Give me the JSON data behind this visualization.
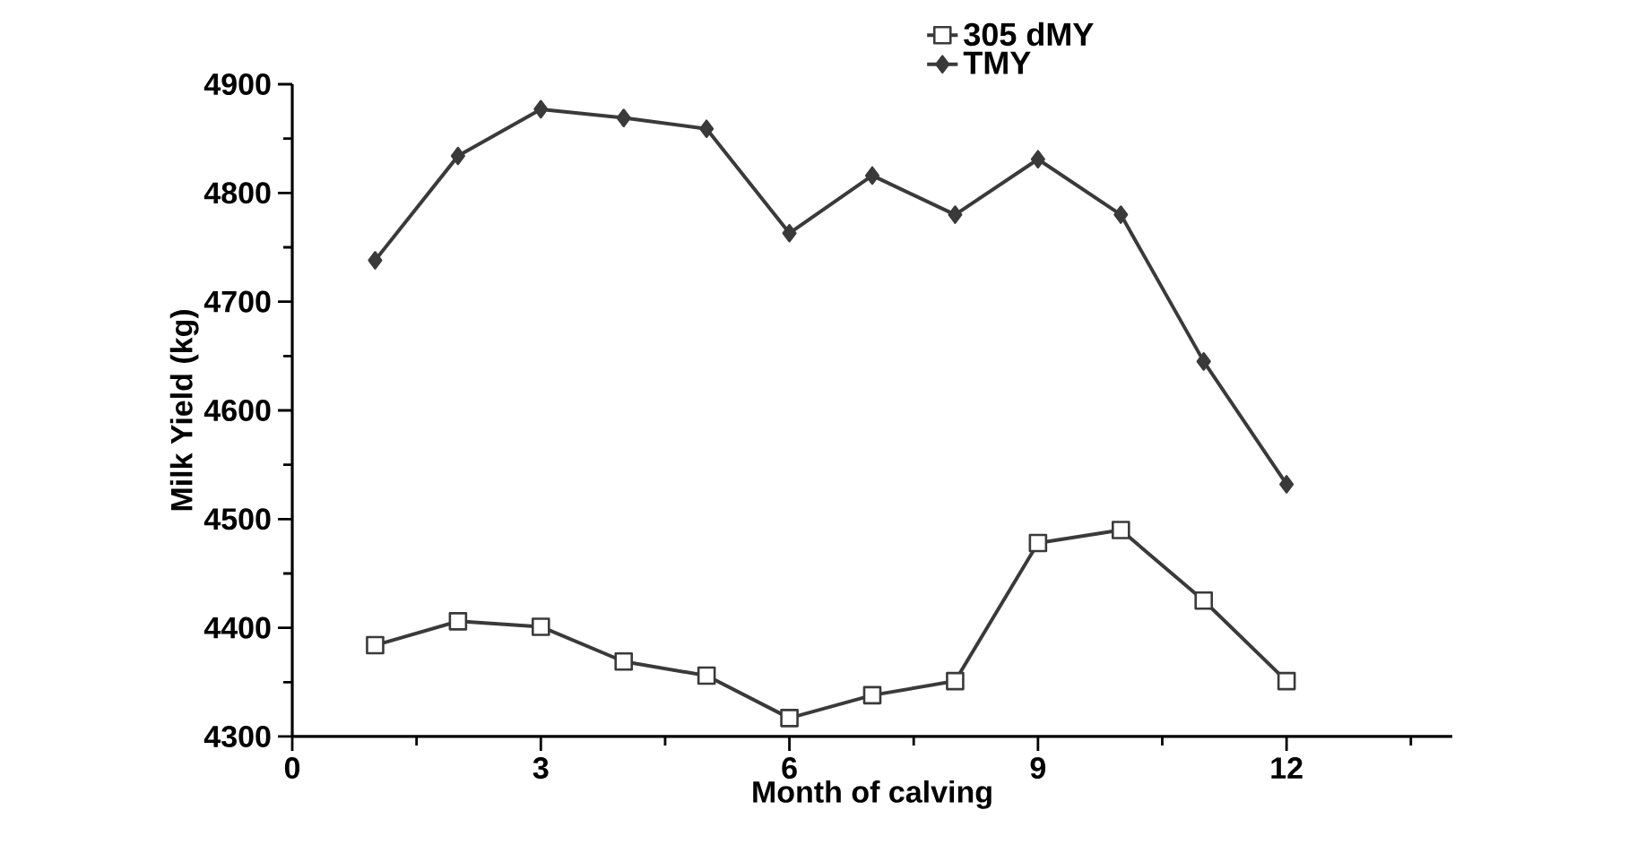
{
  "chart_data": {
    "type": "line",
    "xlabel": "Month of calving",
    "ylabel": "Milk Yield (kg)",
    "x": [
      1,
      2,
      3,
      4,
      5,
      6,
      7,
      8,
      9,
      10,
      11,
      12
    ],
    "series": [
      {
        "name": "305 dMY",
        "color": "#3a3a3a",
        "marker": "square",
        "values": [
          4384,
          4406,
          4401,
          4369,
          4356,
          4317,
          4338,
          4351,
          4478,
          4490,
          4425,
          4351
        ]
      },
      {
        "name": "TMY",
        "color": "#3a3a3a",
        "marker": "diamond",
        "values": [
          4738,
          4834,
          4877,
          4869,
          4859,
          4763,
          4816,
          4780,
          4831,
          4780,
          4645,
          4532
        ]
      }
    ],
    "xlim": [
      0,
      14
    ],
    "xticks": [
      0,
      {
        "value": 1.5,
        "label": null
      },
      3,
      {
        "value": 4.5,
        "label": null
      },
      6,
      {
        "value": 7.5,
        "label": null
      },
      9,
      {
        "value": 10.5,
        "label": null
      },
      12,
      {
        "value": 13.5,
        "label": null
      }
    ],
    "ylim": [
      4300,
      4900
    ],
    "yticks": [
      4300,
      {
        "value": 4350,
        "label": null
      },
      4400,
      {
        "value": 4450,
        "label": null
      },
      4500,
      {
        "value": 4550,
        "label": null
      },
      4600,
      {
        "value": 4650,
        "label": null
      },
      4700,
      {
        "value": 4750,
        "label": null
      },
      4800,
      {
        "value": 4850,
        "label": null
      },
      4900
    ],
    "legend": "top",
    "grid": false,
    "line_style": "solid"
  }
}
